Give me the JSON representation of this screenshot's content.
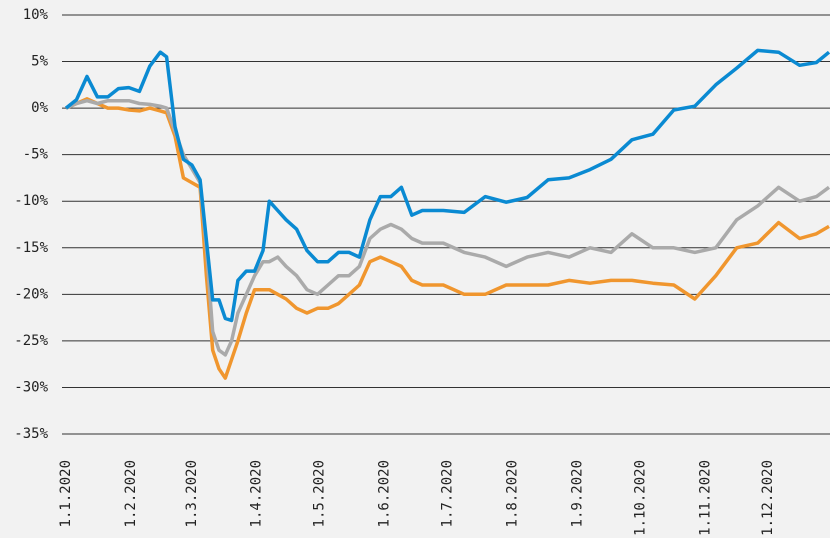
{
  "chart_data": {
    "type": "line",
    "x": [
      0,
      5,
      10,
      15,
      20,
      25,
      30,
      35,
      40,
      45,
      48,
      52,
      56,
      60,
      64,
      67,
      70,
      73,
      76,
      79,
      82,
      86,
      90,
      94,
      97,
      101,
      105,
      110,
      115,
      120,
      125,
      130,
      135,
      140,
      145,
      150,
      155,
      160,
      165,
      170,
      180,
      190,
      200,
      210,
      220,
      230,
      240,
      250,
      260,
      270,
      280,
      290,
      300,
      310,
      320,
      330,
      340,
      350,
      358,
      364
    ],
    "series": [
      {
        "color": "#f0962e",
        "values": [
          0,
          0.5,
          1,
          0.5,
          0,
          0,
          -0.2,
          -0.3,
          0,
          -0.3,
          -0.5,
          -3,
          -7.5,
          -8,
          -8.5,
          -18,
          -26,
          -28,
          -29,
          -27,
          -25,
          -22,
          -19.5,
          -19.5,
          -19.5,
          -20,
          -20.5,
          -21.5,
          -22,
          -21.5,
          -21.5,
          -21,
          -20,
          -19,
          -16.5,
          -16,
          -16.5,
          -17,
          -18.5,
          -19,
          -19,
          -20,
          -20,
          -19,
          -19,
          -19,
          -18.5,
          -18.8,
          -18.5,
          -18.5,
          -18.8,
          -19,
          -20.5,
          -18,
          -15,
          -14.5,
          -12.3,
          -14,
          -13.5,
          -12.7
        ]
      },
      {
        "color": "#aaaaaa",
        "values": [
          0,
          0.5,
          0.8,
          0.5,
          0.8,
          0.8,
          0.8,
          0.5,
          0.4,
          0.2,
          0,
          -2.5,
          -5,
          -6.5,
          -8,
          -15,
          -24,
          -26,
          -26.5,
          -25,
          -22,
          -20,
          -18,
          -16.5,
          -16.5,
          -16,
          -17,
          -18,
          -19.5,
          -20,
          -19,
          -18,
          -18,
          -17,
          -14,
          -13,
          -12.5,
          -13,
          -14,
          -14.5,
          -14.5,
          -15.5,
          -16,
          -17,
          -16,
          -15.5,
          -16,
          -15,
          -15.5,
          -13.5,
          -15,
          -15,
          -15.5,
          -15,
          -12,
          -10.5,
          -8.5,
          -10,
          -9.5,
          -8.5
        ]
      },
      {
        "color": "#0a8ad2",
        "values": [
          0,
          0.9,
          3.4,
          1.2,
          1.2,
          2.1,
          2.2,
          1.8,
          4.5,
          6,
          5.5,
          -2,
          -5.5,
          -6.1,
          -7.7,
          -14.2,
          -20.6,
          -20.6,
          -22.6,
          -22.8,
          -18.5,
          -17.5,
          -17.5,
          -15.3,
          -10,
          -11,
          -12,
          -13,
          -15.3,
          -16.5,
          -16.5,
          -15.5,
          -15.5,
          -16,
          -12,
          -9.5,
          -9.5,
          -8.5,
          -11.5,
          -11,
          -11,
          -11.2,
          -9.5,
          -10.1,
          -9.6,
          -7.7,
          -7.5,
          -6.6,
          -5.5,
          -3.4,
          -2.8,
          -0.2,
          0.2,
          2.5,
          4.3,
          6.2,
          6,
          4.6,
          4.9,
          6
        ]
      }
    ],
    "xlim": [
      0,
      364.5
    ],
    "xticks": [
      {
        "value": 0,
        "label": "1.1.2020"
      },
      {
        "value": 31,
        "label": "1.2.2020"
      },
      {
        "value": 60,
        "label": "1.3.2020"
      },
      {
        "value": 91,
        "label": "1.4.2020"
      },
      {
        "value": 121,
        "label": "1.5.2020"
      },
      {
        "value": 152,
        "label": "1.6.2020"
      },
      {
        "value": 182,
        "label": "1.7.2020"
      },
      {
        "value": 213,
        "label": "1.8.2020"
      },
      {
        "value": 244,
        "label": "1.9.2020"
      },
      {
        "value": 274,
        "label": "1.10.2020"
      },
      {
        "value": 305,
        "label": "1.11.2020"
      },
      {
        "value": 335,
        "label": "1.12.2020"
      }
    ],
    "ylim": [
      -35,
      10
    ],
    "yticks": [
      {
        "value": 10,
        "label": "10%"
      },
      {
        "value": 5,
        "label": "5%"
      },
      {
        "value": 0,
        "label": "0%"
      },
      {
        "value": -5,
        "label": "-5%"
      },
      {
        "value": -10,
        "label": "-10%"
      },
      {
        "value": -15,
        "label": "-15%"
      },
      {
        "value": -20,
        "label": "-20%"
      },
      {
        "value": -25,
        "label": "-25%"
      },
      {
        "value": -30,
        "label": "-30%"
      },
      {
        "value": -35,
        "label": "-35%"
      }
    ],
    "grid": true
  }
}
